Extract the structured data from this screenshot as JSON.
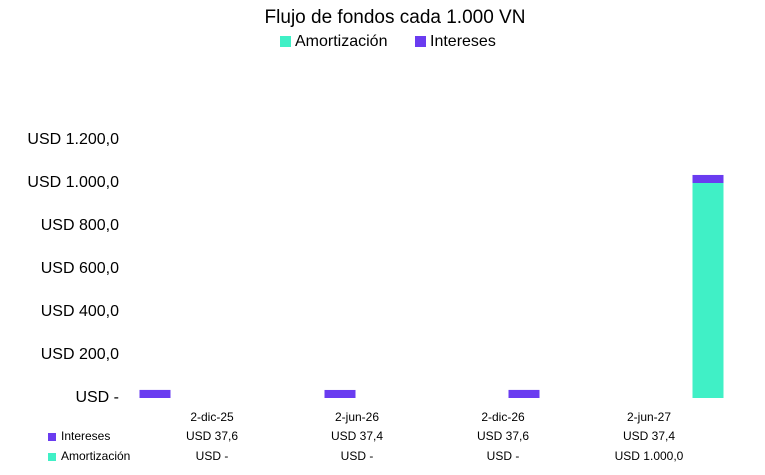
{
  "chart_data": {
    "type": "bar",
    "stacked": true,
    "title": "Flujo de fondos cada 1.000 VN",
    "categories": [
      "2-dic-25",
      "2-jun-26",
      "2-dic-26",
      "2-jun-27"
    ],
    "series": [
      {
        "name": "Amortización",
        "color": "#40f0c6",
        "values": [
          0,
          0,
          0,
          1000
        ],
        "value_labels": [
          "USD -",
          "USD -",
          "USD -",
          "USD 1.000,0"
        ]
      },
      {
        "name": "Intereses",
        "color": "#6a3cf0",
        "values": [
          37.6,
          37.4,
          37.6,
          37.4
        ],
        "value_labels": [
          "USD 37,6",
          "USD 37,4",
          "USD 37,6",
          "USD 37,4"
        ]
      }
    ],
    "ylim": [
      0,
      1200
    ],
    "yticks": [
      {
        "value": 0,
        "label": "USD -"
      },
      {
        "value": 200,
        "label": "USD 200,0"
      },
      {
        "value": 400,
        "label": "USD 400,0"
      },
      {
        "value": 600,
        "label": "USD 600,0"
      },
      {
        "value": 800,
        "label": "USD 800,0"
      },
      {
        "value": 1000,
        "label": "USD 1.000,0"
      },
      {
        "value": 1200,
        "label": "USD 1.200,0"
      }
    ],
    "grid": false
  }
}
